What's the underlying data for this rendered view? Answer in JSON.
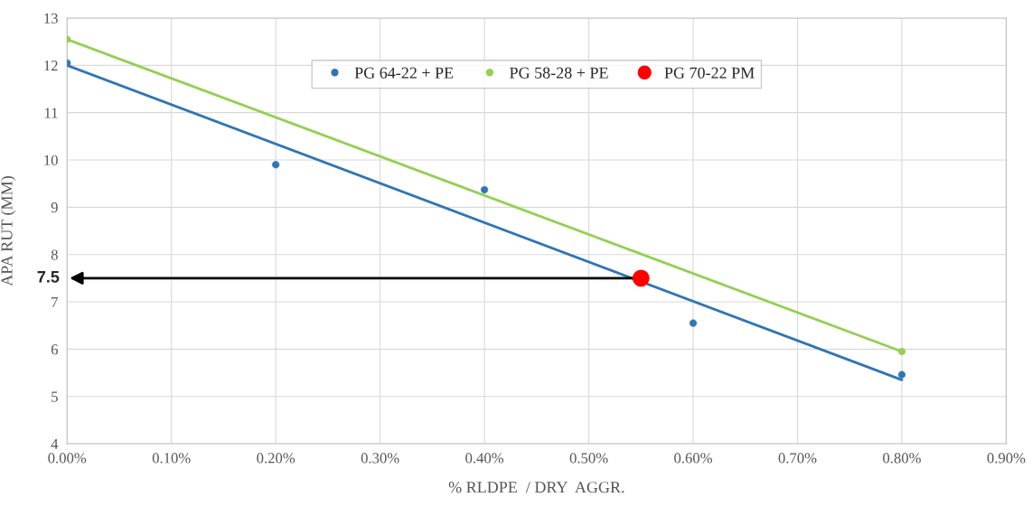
{
  "chart_data": {
    "type": "scatter",
    "xlabel": "% RLDPE  / DRY  AGGR.",
    "ylabel": "APA RUT (MM)",
    "xlim": [
      0,
      0.9
    ],
    "ylim": [
      4,
      13
    ],
    "xticks": [
      {
        "value": 0,
        "label": "0.00%"
      },
      {
        "value": 0.1,
        "label": "0.10%"
      },
      {
        "value": 0.2,
        "label": "0.20%"
      },
      {
        "value": 0.3,
        "label": "0.30%"
      },
      {
        "value": 0.4,
        "label": "0.40%"
      },
      {
        "value": 0.5,
        "label": "0.50%"
      },
      {
        "value": 0.6,
        "label": "0.60%"
      },
      {
        "value": 0.7,
        "label": "0.70%"
      },
      {
        "value": 0.8,
        "label": "0.80%"
      },
      {
        "value": 0.9,
        "label": "0.90%"
      }
    ],
    "yticks": [
      4,
      5,
      6,
      7,
      8,
      9,
      10,
      11,
      12,
      13
    ],
    "grid": true,
    "legend": "top",
    "marker": "circle",
    "series": [
      {
        "name": "PG 64-22 + PE",
        "color": "#2e75b6",
        "x": [
          0,
          0.2,
          0.4,
          0.6,
          0.8
        ],
        "values": [
          12.05,
          9.9,
          9.37,
          6.55,
          5.46
        ]
      },
      {
        "name": "PG 58-28 + PE",
        "color": "#92d050",
        "x": [
          0,
          0.8
        ],
        "values": [
          12.55,
          5.95
        ]
      },
      {
        "name": "PG 70-22 PM",
        "color": "#ff0000",
        "x": [
          0.55
        ],
        "values": [
          7.5
        ]
      },
      {
        "type": "line",
        "marker": "none",
        "color": "#2e75b6",
        "x": [
          0,
          0.8
        ],
        "values": [
          12.0,
          5.35
        ]
      },
      {
        "type": "line",
        "marker": "none",
        "color": "#92d050",
        "x": [
          0,
          0.8
        ],
        "values": [
          12.55,
          5.95
        ]
      }
    ],
    "annotations": [
      "7.5"
    ]
  }
}
